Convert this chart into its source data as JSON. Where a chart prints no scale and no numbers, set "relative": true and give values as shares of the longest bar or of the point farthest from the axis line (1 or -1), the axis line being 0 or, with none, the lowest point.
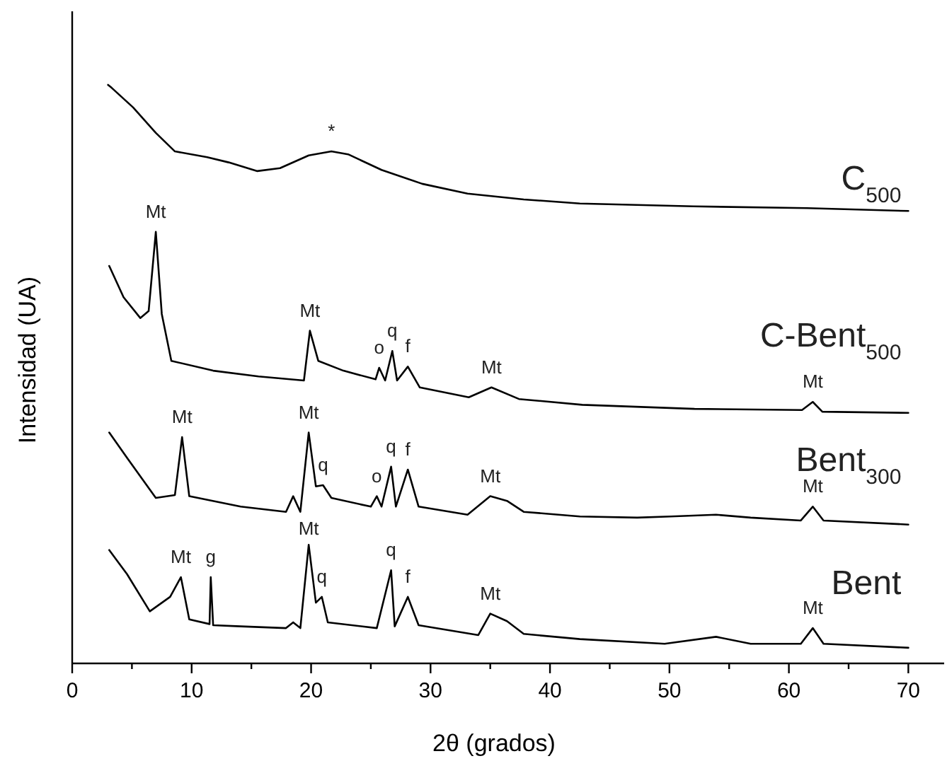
{
  "chart_data": {
    "type": "line",
    "relative": true,
    "xlabel": "2θ (grados)",
    "ylabel": "Intensidad (UA)",
    "xlim": [
      0,
      73
    ],
    "xticks": [
      0,
      {
        "value": 5,
        "label": null
      },
      10,
      {
        "value": 15,
        "label": null
      },
      20,
      {
        "value": 25,
        "label": null
      },
      30,
      {
        "value": 35,
        "label": null
      },
      40,
      {
        "value": 45,
        "label": null
      },
      50,
      {
        "value": 55,
        "label": null
      },
      60,
      {
        "value": 65,
        "label": null
      },
      70
    ],
    "grid": false,
    "marker": "none",
    "line_style": "solid",
    "series": [
      {
        "name": "C$_{500}$",
        "color": "#000000",
        "x": [
          3,
          3.3,
          5.1,
          7.0,
          8.6,
          11.3,
          13.1,
          15.5,
          17.4,
          19.8,
          21.7,
          23.1,
          25.9,
          29.3,
          33.1,
          37.8,
          42.5,
          52,
          61.5,
          70
        ],
        "values": [
          1.0,
          0.995,
          0.961,
          0.917,
          0.885,
          0.875,
          0.866,
          0.851,
          0.856,
          0.878,
          0.885,
          0.88,
          0.853,
          0.829,
          0.812,
          0.802,
          0.795,
          0.79,
          0.787,
          0.782
        ]
      },
      {
        "name": "C-Bent$_{500}$",
        "color": "#000000",
        "x": [
          3.1,
          4.3,
          5.7,
          6.4,
          7.0,
          7.5,
          8.3,
          11.8,
          15.6,
          19.4,
          19.9,
          20.6,
          22.7,
          25.4,
          25.7,
          26.2,
          26.8,
          27.2,
          28.1,
          29.1,
          33.2,
          35.1,
          37.4,
          42.7,
          52.1,
          61.1,
          62.0,
          62.8,
          70
        ],
        "values": [
          0.687,
          0.633,
          0.597,
          0.609,
          0.746,
          0.604,
          0.523,
          0.506,
          0.496,
          0.489,
          0.575,
          0.523,
          0.506,
          0.491,
          0.511,
          0.489,
          0.54,
          0.489,
          0.513,
          0.477,
          0.46,
          0.477,
          0.457,
          0.447,
          0.44,
          0.438,
          0.452,
          0.435,
          0.433
        ]
      },
      {
        "name": "Bent$_{300}$",
        "color": "#000000",
        "x": [
          3.1,
          4.6,
          7.0,
          8.6,
          9.2,
          9.8,
          14.1,
          17.9,
          18.5,
          19.1,
          19.8,
          20.4,
          21.0,
          21.7,
          25.0,
          25.5,
          25.9,
          26.7,
          27.1,
          28.1,
          29.0,
          33.1,
          35.0,
          36.4,
          37.8,
          42.5,
          47.3,
          50.1,
          53.9,
          56.8,
          61.0,
          62.0,
          62.9,
          70
        ],
        "values": [
          0.399,
          0.355,
          0.286,
          0.291,
          0.391,
          0.289,
          0.271,
          0.262,
          0.289,
          0.262,
          0.399,
          0.306,
          0.308,
          0.286,
          0.271,
          0.289,
          0.271,
          0.34,
          0.271,
          0.335,
          0.271,
          0.257,
          0.289,
          0.281,
          0.262,
          0.254,
          0.252,
          0.254,
          0.257,
          0.252,
          0.247,
          0.271,
          0.247,
          0.24
        ]
      },
      {
        "name": "Bent",
        "color": "#000000",
        "x": [
          3.1,
          4.6,
          6.5,
          8.2,
          9.1,
          9.8,
          11.5,
          11.6,
          11.8,
          14.1,
          17.9,
          18.5,
          19.1,
          19.8,
          20.4,
          20.9,
          21.4,
          25.5,
          26.7,
          27.0,
          28.1,
          29.0,
          34.0,
          35.0,
          36.4,
          37.8,
          42.5,
          49.6,
          53.9,
          56.8,
          61.0,
          62.0,
          62.9,
          70
        ],
        "values": [
          0.196,
          0.154,
          0.09,
          0.115,
          0.149,
          0.076,
          0.068,
          0.149,
          0.066,
          0.064,
          0.061,
          0.071,
          0.061,
          0.205,
          0.105,
          0.115,
          0.071,
          0.061,
          0.161,
          0.064,
          0.115,
          0.066,
          0.049,
          0.086,
          0.073,
          0.051,
          0.042,
          0.034,
          0.046,
          0.034,
          0.034,
          0.061,
          0.034,
          0.027
        ]
      }
    ],
    "annotations": [
      {
        "text": "*",
        "x": 21.7,
        "y": 0.885
      },
      {
        "text": "Mt",
        "x": 7.0,
        "y": 0.746
      },
      {
        "text": "Mt",
        "x": 19.9,
        "y": 0.575
      },
      {
        "text": "o",
        "x": 25.7,
        "y": 0.511
      },
      {
        "text": "q",
        "x": 26.8,
        "y": 0.54
      },
      {
        "text": "f",
        "x": 28.1,
        "y": 0.513
      },
      {
        "text": "Mt",
        "x": 35.1,
        "y": 0.477
      },
      {
        "text": "Mt",
        "x": 62.0,
        "y": 0.452
      },
      {
        "text": "Mt",
        "x": 9.2,
        "y": 0.391
      },
      {
        "text": "Mt",
        "x": 19.8,
        "y": 0.399
      },
      {
        "text": "q",
        "x": 21.0,
        "y": 0.308
      },
      {
        "text": "q",
        "x": 26.7,
        "y": 0.34
      },
      {
        "text": "o",
        "x": 25.5,
        "y": 0.289
      },
      {
        "text": "f",
        "x": 28.1,
        "y": 0.335
      },
      {
        "text": "Mt",
        "x": 35.0,
        "y": 0.289
      },
      {
        "text": "Mt",
        "x": 62.0,
        "y": 0.271
      },
      {
        "text": "Mt",
        "x": 9.1,
        "y": 0.149
      },
      {
        "text": "g",
        "x": 11.6,
        "y": 0.149
      },
      {
        "text": "Mt",
        "x": 19.8,
        "y": 0.205
      },
      {
        "text": "q",
        "x": 20.9,
        "y": 0.115
      },
      {
        "text": "q",
        "x": 26.7,
        "y": 0.161
      },
      {
        "text": "f",
        "x": 28.1,
        "y": 0.115
      },
      {
        "text": "Mt",
        "x": 35.0,
        "y": 0.086
      },
      {
        "text": "Mt",
        "x": 62.0,
        "y": 0.061
      }
    ]
  }
}
